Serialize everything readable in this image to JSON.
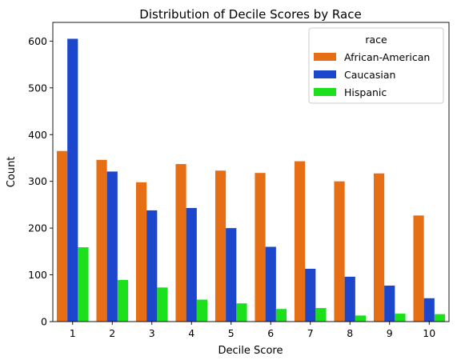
{
  "chart_data": {
    "type": "bar",
    "title": "Distribution of Decile Scores by Race",
    "xlabel": "Decile Score",
    "ylabel": "Count",
    "categories": [
      "1",
      "2",
      "3",
      "4",
      "5",
      "6",
      "7",
      "8",
      "9",
      "10"
    ],
    "ylim": [
      0,
      640
    ],
    "yticks": [
      0,
      100,
      200,
      300,
      400,
      500,
      600
    ],
    "grid": false,
    "legend": {
      "title": "race",
      "placement": "top-right"
    },
    "series": [
      {
        "name": "African-American",
        "color": "#e66f15",
        "values": [
          365,
          346,
          298,
          337,
          323,
          318,
          343,
          300,
          317,
          227
        ]
      },
      {
        "name": "Caucasian",
        "color": "#1c46cc",
        "values": [
          605,
          321,
          238,
          243,
          200,
          160,
          113,
          96,
          77,
          50
        ]
      },
      {
        "name": "Hispanic",
        "color": "#1ce01c",
        "values": [
          159,
          89,
          73,
          47,
          39,
          27,
          29,
          13,
          17,
          16
        ]
      }
    ]
  }
}
